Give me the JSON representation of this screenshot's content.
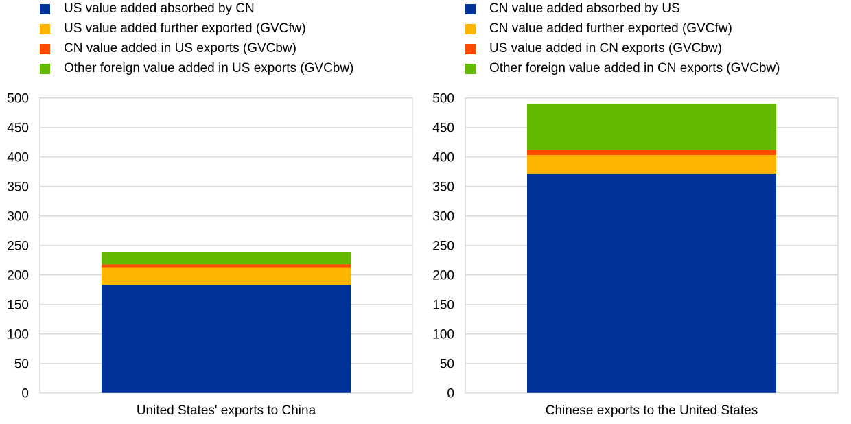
{
  "chart_data": [
    {
      "type": "bar",
      "stacked": true,
      "title": "",
      "xlabel": "",
      "ylabel": "",
      "ylim": [
        0,
        500
      ],
      "yticks": [
        0,
        50,
        100,
        150,
        200,
        250,
        300,
        350,
        400,
        450,
        500
      ],
      "grid": true,
      "legend_position": "top",
      "categories": [
        "United States' exports to China"
      ],
      "series": [
        {
          "name": "US value added absorbed by CN",
          "color": "#003299",
          "values": [
            183
          ]
        },
        {
          "name": "US value added further exported (GVCfw)",
          "color": "#FFB400",
          "values": [
            30
          ]
        },
        {
          "name": "CN value added in US exports (GVCbw)",
          "color": "#FF4B00",
          "values": [
            5
          ]
        },
        {
          "name": "Other foreign value added in US exports (GVCbw)",
          "color": "#65B800",
          "values": [
            20
          ]
        }
      ]
    },
    {
      "type": "bar",
      "stacked": true,
      "title": "",
      "xlabel": "",
      "ylabel": "",
      "ylim": [
        0,
        500
      ],
      "yticks": [
        0,
        50,
        100,
        150,
        200,
        250,
        300,
        350,
        400,
        450,
        500
      ],
      "grid": true,
      "legend_position": "top",
      "categories": [
        "Chinese exports to the United States"
      ],
      "series": [
        {
          "name": "CN value added absorbed by US",
          "color": "#003299",
          "values": [
            372
          ]
        },
        {
          "name": "CN value added further exported (GVCfw)",
          "color": "#FFB400",
          "values": [
            31
          ]
        },
        {
          "name": "US value added in CN exports (GVCbw)",
          "color": "#FF4B00",
          "values": [
            9
          ]
        },
        {
          "name": "Other foreign value added in CN exports (GVCbw)",
          "color": "#65B800",
          "values": [
            78
          ]
        }
      ]
    }
  ],
  "colors": {
    "gridline": "#D9D9D9",
    "axis": "#D9D9D9",
    "text": "#000000"
  }
}
